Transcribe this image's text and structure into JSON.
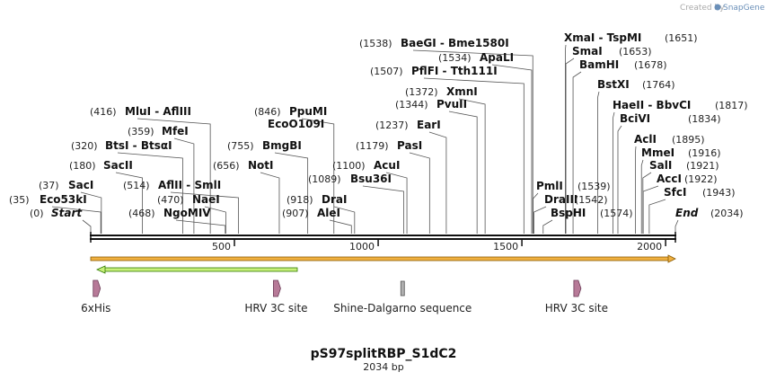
{
  "branding": {
    "created_by": "Created by",
    "app": "SnapGene"
  },
  "plasmid": {
    "name": "pS97splitRBP_S1dC2",
    "length_label": "2034 bp",
    "length": 2034
  },
  "axis": {
    "ticks": [
      500,
      1000,
      1500,
      2000
    ]
  },
  "start_label": {
    "name": "Start",
    "pos_label": "(0)",
    "pos": 0
  },
  "end_label": {
    "name": "End",
    "pos_label": "(2034)",
    "pos": 2034
  },
  "sites": [
    {
      "id": "eco53ki",
      "name": "Eco53kI",
      "pos_label": "(35)",
      "pos": 35
    },
    {
      "id": "saci",
      "name": "SacI",
      "pos_label": "(37)",
      "pos": 37
    },
    {
      "id": "sacii",
      "name": "SacII",
      "pos_label": "(180)",
      "pos": 180
    },
    {
      "id": "btsi",
      "name": "BtsI  - BtsαI",
      "pos_label": "(320)",
      "pos": 320
    },
    {
      "id": "mfei",
      "name": "MfeI",
      "pos_label": "(359)",
      "pos": 359
    },
    {
      "id": "mlui",
      "name": "MluI  - AflIII",
      "pos_label": "(416)",
      "pos": 416
    },
    {
      "id": "ngomiv",
      "name": "NgoMIV",
      "pos_label": "(468)",
      "pos": 468
    },
    {
      "id": "naei",
      "name": "NaeI",
      "pos_label": "(470)",
      "pos": 470
    },
    {
      "id": "afliii",
      "name": "AflII  - SmlI",
      "pos_label": "(514)",
      "pos": 514
    },
    {
      "id": "noti",
      "name": "NotI",
      "pos_label": "(656)",
      "pos": 656
    },
    {
      "id": "bmgbi",
      "name": "BmgBI",
      "pos_label": "(755)",
      "pos": 755
    },
    {
      "id": "ppumi",
      "name": "PpuMI",
      "pos_label": "(846)",
      "pos": 846
    },
    {
      "id": "ecoo109i",
      "name": "EcoO109I",
      "pos_label": "",
      "pos": 846
    },
    {
      "id": "alei",
      "name": "AleI",
      "pos_label": "(907)",
      "pos": 907
    },
    {
      "id": "drai",
      "name": "DraI",
      "pos_label": "(918)",
      "pos": 918
    },
    {
      "id": "bsu36i",
      "name": "Bsu36I",
      "pos_label": "(1089)",
      "pos": 1089
    },
    {
      "id": "acui",
      "name": "AcuI",
      "pos_label": "(1100)",
      "pos": 1100
    },
    {
      "id": "pasi",
      "name": "PasI",
      "pos_label": "(1179)",
      "pos": 1179
    },
    {
      "id": "eari",
      "name": "EarI",
      "pos_label": "(1237)",
      "pos": 1237
    },
    {
      "id": "pvuii",
      "name": "PvuII",
      "pos_label": "(1344)",
      "pos": 1344
    },
    {
      "id": "xmni",
      "name": "XmnI",
      "pos_label": "(1372)",
      "pos": 1372
    },
    {
      "id": "pflfi",
      "name": "PflFI  - Tth111I",
      "pos_label": "(1507)",
      "pos": 1507
    },
    {
      "id": "apali",
      "name": "ApaLI",
      "pos_label": "(1534)",
      "pos": 1534
    },
    {
      "id": "baegi",
      "name": "BaeGI  - Bme1580I",
      "pos_label": "(1538)",
      "pos": 1538
    },
    {
      "id": "pmli",
      "name": "PmlI",
      "pos_label": "(1539)",
      "pos": 1539
    },
    {
      "id": "draiii",
      "name": "DraIII",
      "pos_label": "(1542)",
      "pos": 1542
    },
    {
      "id": "bsphi",
      "name": "BspHI",
      "pos_label": "(1574)",
      "pos": 1574
    },
    {
      "id": "xmai",
      "name": "XmaI  - TspMI",
      "pos_label": "(1651)",
      "pos": 1651
    },
    {
      "id": "smai",
      "name": "SmaI",
      "pos_label": "(1653)",
      "pos": 1653
    },
    {
      "id": "bamhi",
      "name": "BamHI",
      "pos_label": "(1678)",
      "pos": 1678
    },
    {
      "id": "bstxi",
      "name": "BstXI",
      "pos_label": "(1764)",
      "pos": 1764
    },
    {
      "id": "haeii",
      "name": "HaeII  - BbvCI",
      "pos_label": "(1817)",
      "pos": 1817
    },
    {
      "id": "bcivi",
      "name": "BciVI",
      "pos_label": "(1834)",
      "pos": 1834
    },
    {
      "id": "acli",
      "name": "AclI",
      "pos_label": "(1895)",
      "pos": 1895
    },
    {
      "id": "mmei",
      "name": "MmeI",
      "pos_label": "(1916)",
      "pos": 1916
    },
    {
      "id": "sali",
      "name": "SalI",
      "pos_label": "(1921)",
      "pos": 1921
    },
    {
      "id": "acci",
      "name": "AccI",
      "pos_label": "(1922)",
      "pos": 1922
    },
    {
      "id": "sfci",
      "name": "SfcI",
      "pos_label": "(1943)",
      "pos": 1943
    }
  ],
  "features": [
    {
      "id": "6xhis",
      "label": "6xHis",
      "pos": 18,
      "type": "tag"
    },
    {
      "id": "hrv3c-1",
      "label": "HRV 3C site",
      "pos": 645,
      "type": "site"
    },
    {
      "id": "shine-dalgarno",
      "label": "Shine-Dalgarno sequence",
      "pos": 1085,
      "type": "rbs"
    },
    {
      "id": "hrv3c-2",
      "label": "HRV 3C site",
      "pos": 1690,
      "type": "site"
    }
  ],
  "colors": {
    "orange_strand": "#f0b040",
    "orange_edge": "#8a5a00",
    "green_strand": "#c8f07a",
    "green_edge": "#2f7a00",
    "feature_fill": "#b77a98",
    "rbs_fill": "#b0b0b0",
    "line": "#111111"
  }
}
